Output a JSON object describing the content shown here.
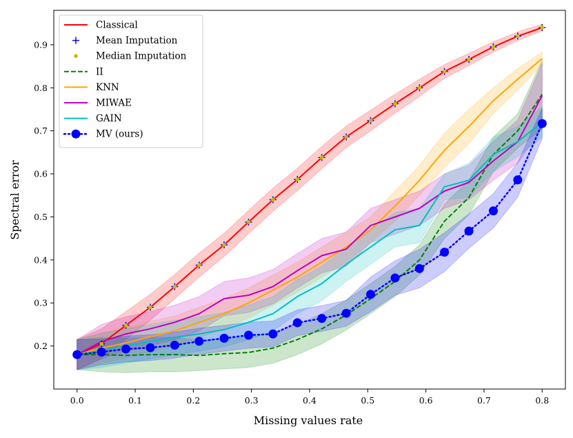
{
  "chart_data": {
    "type": "line",
    "title": "",
    "xlabel": "Missing values rate",
    "ylabel": "Spectral error",
    "xlim": [
      -0.04,
      0.84
    ],
    "ylim": [
      0.1,
      0.98
    ],
    "xticks": [
      0.0,
      0.1,
      0.2,
      0.3,
      0.4,
      0.5,
      0.6,
      0.7,
      0.8
    ],
    "xtick_labels": [
      "0.0",
      "0.1",
      "0.2",
      "0.3",
      "0.4",
      "0.5",
      "0.6",
      "0.7",
      "0.8"
    ],
    "yticks": [
      0.2,
      0.3,
      0.4,
      0.5,
      0.6,
      0.7,
      0.8,
      0.9
    ],
    "ytick_labels": [
      "0.2",
      "0.3",
      "0.4",
      "0.5",
      "0.6",
      "0.7",
      "0.8",
      "0.9"
    ],
    "grid": false,
    "legend_position": "top-left",
    "x": [
      0.0,
      0.042,
      0.084,
      0.126,
      0.168,
      0.21,
      0.253,
      0.295,
      0.337,
      0.379,
      0.421,
      0.463,
      0.505,
      0.547,
      0.589,
      0.632,
      0.674,
      0.716,
      0.758,
      0.8
    ],
    "series": [
      {
        "name": "Classical",
        "color": "#ff0000",
        "style": "solid",
        "marker": "none",
        "band": true,
        "values": [
          0.18,
          0.205,
          0.248,
          0.29,
          0.338,
          0.388,
          0.435,
          0.488,
          0.54,
          0.587,
          0.638,
          0.686,
          0.724,
          0.763,
          0.8,
          0.838,
          0.866,
          0.895,
          0.92,
          0.94
        ],
        "spread": [
          0.035,
          0.035,
          0.032,
          0.03,
          0.028,
          0.028,
          0.027,
          0.027,
          0.027,
          0.026,
          0.026,
          0.025,
          0.024,
          0.022,
          0.02,
          0.016,
          0.014,
          0.012,
          0.01,
          0.008
        ]
      },
      {
        "name": "Mean Imputation",
        "color": "#0000ff",
        "style": "none",
        "marker": "plus",
        "band": false,
        "values": [
          0.18,
          0.205,
          0.248,
          0.29,
          0.338,
          0.388,
          0.435,
          0.488,
          0.54,
          0.587,
          0.638,
          0.686,
          0.724,
          0.763,
          0.8,
          0.838,
          0.866,
          0.895,
          0.92,
          0.94
        ]
      },
      {
        "name": "Median Imputation",
        "color": "#bfbf00",
        "style": "none",
        "marker": "dot",
        "band": false,
        "values": [
          0.18,
          0.205,
          0.248,
          0.29,
          0.338,
          0.388,
          0.435,
          0.488,
          0.54,
          0.587,
          0.638,
          0.686,
          0.724,
          0.763,
          0.8,
          0.838,
          0.866,
          0.895,
          0.92,
          0.94
        ]
      },
      {
        "name": "II",
        "color": "#008000",
        "style": "dashed",
        "marker": "none",
        "band": true,
        "values": [
          0.18,
          0.18,
          0.178,
          0.18,
          0.18,
          0.178,
          0.182,
          0.185,
          0.195,
          0.215,
          0.24,
          0.272,
          0.31,
          0.35,
          0.4,
          0.49,
          0.545,
          0.645,
          0.7,
          0.785
        ],
        "spread": [
          0.035,
          0.04,
          0.04,
          0.04,
          0.04,
          0.035,
          0.035,
          0.035,
          0.035,
          0.035,
          0.035,
          0.035,
          0.035,
          0.035,
          0.035,
          0.04,
          0.04,
          0.04,
          0.04,
          0.08
        ]
      },
      {
        "name": "KNN",
        "color": "#ffa500",
        "style": "solid",
        "marker": "none",
        "band": true,
        "values": [
          0.18,
          0.195,
          0.207,
          0.222,
          0.235,
          0.255,
          0.275,
          0.3,
          0.33,
          0.36,
          0.395,
          0.43,
          0.47,
          0.525,
          0.585,
          0.655,
          0.71,
          0.77,
          0.82,
          0.868
        ],
        "spread": [
          0.035,
          0.035,
          0.035,
          0.035,
          0.035,
          0.035,
          0.035,
          0.035,
          0.035,
          0.035,
          0.035,
          0.035,
          0.03,
          0.035,
          0.035,
          0.04,
          0.04,
          0.03,
          0.025,
          0.015
        ]
      },
      {
        "name": "MIWAE",
        "color": "#bf00bf",
        "style": "solid",
        "marker": "none",
        "band": true,
        "values": [
          0.18,
          0.21,
          0.228,
          0.24,
          0.255,
          0.275,
          0.31,
          0.318,
          0.338,
          0.375,
          0.41,
          0.425,
          0.48,
          0.5,
          0.52,
          0.56,
          0.58,
          0.63,
          0.675,
          0.782
        ],
        "spread": [
          0.035,
          0.04,
          0.04,
          0.04,
          0.04,
          0.04,
          0.04,
          0.04,
          0.04,
          0.04,
          0.04,
          0.04,
          0.04,
          0.04,
          0.04,
          0.04,
          0.04,
          0.045,
          0.05,
          0.075
        ]
      },
      {
        "name": "GAIN",
        "color": "#00bfbf",
        "style": "solid",
        "marker": "none",
        "band": true,
        "values": [
          0.18,
          0.19,
          0.2,
          0.21,
          0.22,
          0.228,
          0.238,
          0.255,
          0.275,
          0.315,
          0.345,
          0.39,
          0.43,
          0.47,
          0.48,
          0.57,
          0.585,
          0.645,
          0.675,
          0.72
        ],
        "spread": [
          0.035,
          0.04,
          0.04,
          0.04,
          0.04,
          0.04,
          0.04,
          0.04,
          0.04,
          0.04,
          0.04,
          0.04,
          0.04,
          0.04,
          0.04,
          0.03,
          0.04,
          0.04,
          0.035,
          0.035
        ]
      },
      {
        "name": "MV (ours)",
        "color": "#0000ff",
        "style": "dotted",
        "marker": "circle",
        "band": true,
        "values": [
          0.18,
          0.186,
          0.193,
          0.196,
          0.202,
          0.211,
          0.218,
          0.225,
          0.228,
          0.254,
          0.264,
          0.276,
          0.32,
          0.358,
          0.38,
          0.418,
          0.467,
          0.514,
          0.586,
          0.717
        ],
        "spread": [
          0.035,
          0.03,
          0.03,
          0.03,
          0.03,
          0.03,
          0.03,
          0.03,
          0.03,
          0.03,
          0.03,
          0.03,
          0.04,
          0.04,
          0.045,
          0.045,
          0.04,
          0.04,
          0.04,
          0.035
        ]
      }
    ]
  }
}
